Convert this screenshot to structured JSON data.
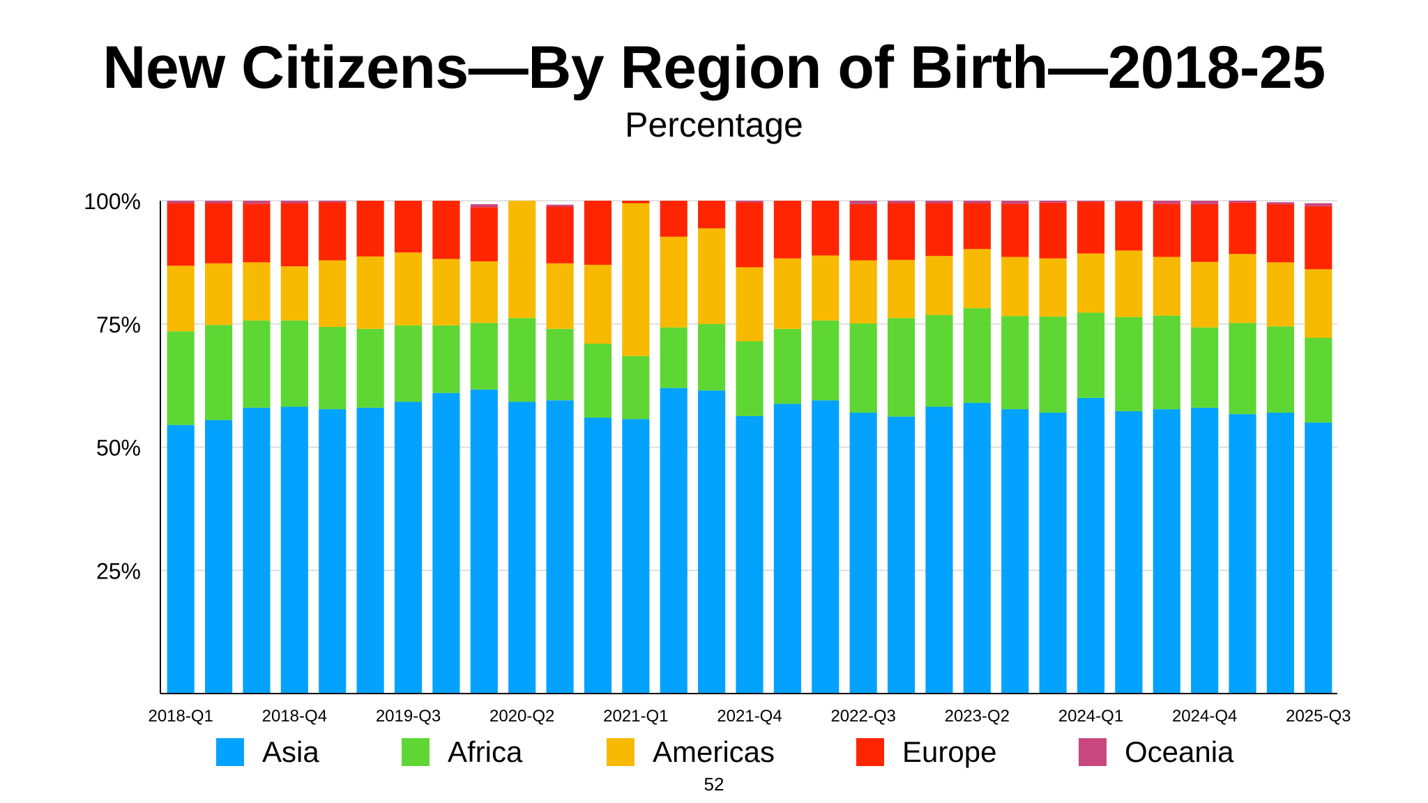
{
  "title": "New Citizens—By Region of Birth—2018-25",
  "subtitle": "Percentage",
  "page_number": "52",
  "chart_data": {
    "type": "bar",
    "stacked": true,
    "title": "New Citizens—By Region of Birth—2018-25",
    "subtitle": "Percentage",
    "xlabel": "",
    "ylabel": "",
    "ylim": [
      0,
      100
    ],
    "yticks": [
      "25%",
      "50%",
      "75%",
      "100%"
    ],
    "grid": true,
    "legend_position": "bottom",
    "categories": [
      "2018-Q1",
      "2018-Q2",
      "2018-Q3",
      "2018-Q4",
      "2019-Q1",
      "2019-Q2",
      "2019-Q3",
      "2019-Q4",
      "2020-Q1",
      "2020-Q2",
      "2020-Q3",
      "2020-Q4",
      "2021-Q1",
      "2021-Q2",
      "2021-Q3",
      "2021-Q4",
      "2022-Q1",
      "2022-Q2",
      "2022-Q3",
      "2022-Q4",
      "2023-Q1",
      "2023-Q2",
      "2023-Q3",
      "2023-Q4",
      "2024-Q1",
      "2024-Q2",
      "2024-Q3",
      "2024-Q4",
      "2025-Q1",
      "2025-Q2",
      "2025-Q3"
    ],
    "xtick_labels": [
      "2018-Q1",
      "2018-Q4",
      "2019-Q3",
      "2020-Q2",
      "2021-Q1",
      "2021-Q4",
      "2022-Q3",
      "2023-Q2",
      "2024-Q1",
      "2024-Q4",
      "2025-Q3"
    ],
    "series": [
      {
        "name": "Asia",
        "color": "#04A2FF",
        "values": [
          54.5,
          55.5,
          58,
          58.2,
          57.7,
          58,
          59.2,
          61,
          61.7,
          59.2,
          59.5,
          56,
          55.7,
          62,
          61.5,
          56.3,
          58.8,
          59.5,
          57,
          56.2,
          58.2,
          59,
          57.7,
          57,
          60,
          57.3,
          57.7,
          58,
          56.7,
          57,
          55
        ]
      },
      {
        "name": "Africa",
        "color": "#5ED734",
        "values": [
          19,
          19.3,
          17.7,
          17.5,
          16.7,
          16,
          15.5,
          13.7,
          13.5,
          17,
          14.5,
          15,
          12.8,
          12.3,
          13.5,
          15.2,
          15.2,
          16.2,
          18.1,
          20,
          18.6,
          19.2,
          18.9,
          19.5,
          17.3,
          19.1,
          19,
          16.3,
          18.5,
          17.5,
          17.2
        ]
      },
      {
        "name": "Americas",
        "color": "#F8BA00",
        "values": [
          13.3,
          12.5,
          11.8,
          11,
          13.5,
          14.7,
          14.8,
          13.5,
          12.5,
          23.8,
          13.3,
          16,
          31,
          18.4,
          19.4,
          15,
          14.3,
          13.2,
          12.8,
          11.8,
          12,
          12,
          12,
          11.8,
          12,
          13.5,
          11.9,
          13.3,
          14,
          13,
          13.9
        ]
      },
      {
        "name": "Europe",
        "color": "#FF2500",
        "values": [
          12.7,
          12.2,
          11.9,
          12.8,
          11.8,
          11.3,
          10.5,
          11.8,
          11,
          0,
          11.5,
          13,
          0.5,
          7.3,
          5.6,
          13.2,
          11.7,
          11.1,
          11.4,
          11.5,
          10.7,
          9.3,
          10.8,
          11.3,
          10.5,
          9.9,
          10.8,
          11.7,
          10.4,
          11.8,
          12.8
        ]
      },
      {
        "name": "Oceania",
        "color": "#C8477F",
        "values": [
          0.5,
          0.5,
          0.6,
          0.5,
          0.3,
          0,
          0,
          0,
          0.6,
          0,
          0.4,
          0,
          0,
          0,
          0,
          0.3,
          0,
          0,
          0.7,
          0.5,
          0.5,
          0.5,
          0.6,
          0.4,
          0.2,
          0.2,
          0.6,
          0.7,
          0.4,
          0.4,
          0.6
        ]
      }
    ]
  },
  "legend": [
    {
      "label": "Asia",
      "color": "#04A2FF"
    },
    {
      "label": "Africa",
      "color": "#5ED734"
    },
    {
      "label": "Americas",
      "color": "#F8BA00"
    },
    {
      "label": "Europe",
      "color": "#FF2500"
    },
    {
      "label": "Oceania",
      "color": "#C8477F"
    }
  ]
}
